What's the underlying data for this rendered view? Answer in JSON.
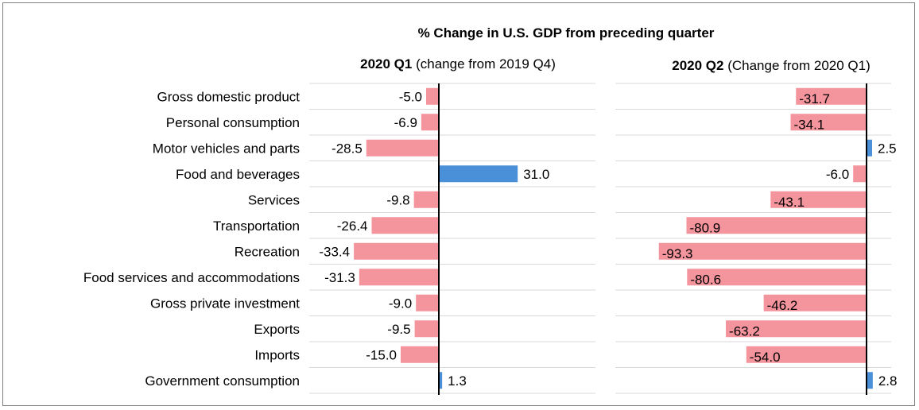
{
  "chart_data": {
    "type": "bar",
    "orientation": "horizontal",
    "title": "% Change in U.S. GDP from preceding quarter",
    "categories": [
      "Gross domestic product",
      "Personal consumption",
      "Motor vehicles and parts",
      "Food and beverages",
      "Services",
      "Transportation",
      "Recreation",
      "Food services and accommodations",
      "Gross private investment",
      "Exports",
      "Imports",
      "Government consumption"
    ],
    "panels": [
      {
        "title_bold": "2020 Q1",
        "title_rest": " (change from 2019 Q4)",
        "values": [
          -5.0,
          -6.9,
          -28.5,
          31.0,
          -9.8,
          -26.4,
          -33.4,
          -31.3,
          -9.0,
          -9.5,
          -15.0,
          1.3
        ],
        "labels": [
          "-5.0",
          "-6.9",
          "-28.5",
          "31.0",
          "-9.8",
          "-26.4",
          "-33.4",
          "-31.3",
          "-9.0",
          "-9.5",
          "-15.0",
          "1.3"
        ]
      },
      {
        "title_bold": "2020 Q2",
        "title_rest": "  (Change from 2020 Q1)",
        "values": [
          -31.7,
          -34.1,
          2.5,
          -6.0,
          -43.1,
          -80.9,
          -93.3,
          -80.6,
          -46.2,
          -63.2,
          -54.0,
          2.8
        ],
        "labels": [
          "-31.7",
          "-34.1",
          "2.5",
          "-6.0",
          "-43.1",
          "-80.9",
          "-93.3",
          "-80.6",
          "-46.2",
          "-63.2",
          "-54.0",
          "2.8"
        ]
      }
    ],
    "legend": "none",
    "grid": true,
    "colors": {
      "negative": "#f4949c",
      "positive": "#4a90d9",
      "axis": "#000000",
      "grid": "#d9d9d9"
    }
  }
}
